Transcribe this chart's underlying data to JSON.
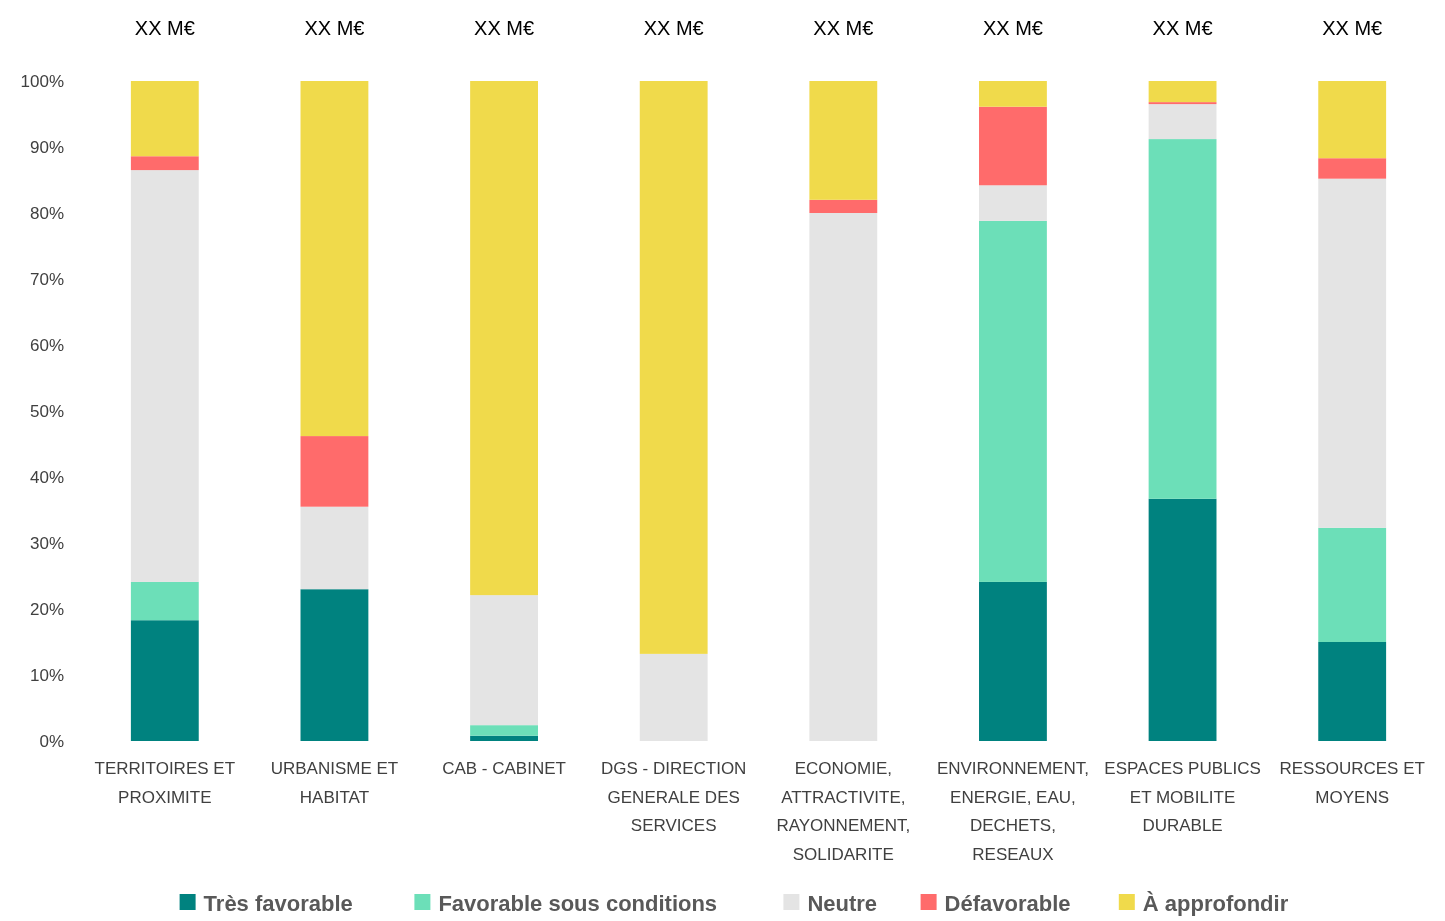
{
  "chart_data": {
    "type": "bar",
    "stacked": true,
    "categories": [
      "TERRITOIRES ET PROXIMITE",
      "URBANISME ET HABITAT",
      "CAB - CABINET",
      "DGS - DIRECTION GENERALE DES SERVICES",
      "ECONOMIE, ATTRACTIVITE, RAYONNEMENT, SOLIDARITE",
      "ENVIRONNEMENT, ENERGIE, EAU, DECHETS, RESEAUX",
      "ESPACES PUBLICS ET MOBILITE DURABLE",
      "RESSOURCES ET MOYENS"
    ],
    "series": [
      {
        "name": "Très favorable",
        "color": "#00827f",
        "values": [
          18.3,
          23.0,
          0.8,
          0,
          0,
          24.1,
          36.7,
          15.0
        ]
      },
      {
        "name": "Favorable sous conditions",
        "color": "#6cdfb8",
        "values": [
          5.8,
          0,
          1.6,
          0,
          0,
          54.7,
          54.5,
          17.3
        ]
      },
      {
        "name": "Neutre",
        "color": "#e4e4e4",
        "values": [
          62.4,
          12.5,
          19.7,
          13.2,
          80.0,
          5.4,
          5.3,
          52.9
        ]
      },
      {
        "name": "Défavorable",
        "color": "#ff6b6b",
        "values": [
          2.1,
          10.7,
          0,
          0,
          2.0,
          11.9,
          0.3,
          3.1
        ]
      },
      {
        "name": "À approfondir",
        "color": "#f0da4b",
        "values": [
          11.4,
          53.8,
          77.9,
          86.8,
          18.0,
          3.9,
          3.2,
          11.7
        ]
      }
    ],
    "totals": [
      "XX M€",
      "XX M€",
      "XX M€",
      "XX M€",
      "XX M€",
      "XX M€",
      "XX M€",
      "XX M€"
    ],
    "ylim": [
      0,
      100
    ],
    "yticks": [
      {
        "value": 0,
        "label": "0%"
      },
      {
        "value": 10,
        "label": "10%"
      },
      {
        "value": 20,
        "label": "20%"
      },
      {
        "value": 30,
        "label": "30%"
      },
      {
        "value": 40,
        "label": "40%"
      },
      {
        "value": 50,
        "label": "50%"
      },
      {
        "value": 60,
        "label": "60%"
      },
      {
        "value": 70,
        "label": "70%"
      },
      {
        "value": 80,
        "label": "80%"
      },
      {
        "value": 90,
        "label": "90%"
      },
      {
        "value": 100,
        "label": "100%"
      }
    ],
    "grid": false,
    "legend": "bottom"
  }
}
